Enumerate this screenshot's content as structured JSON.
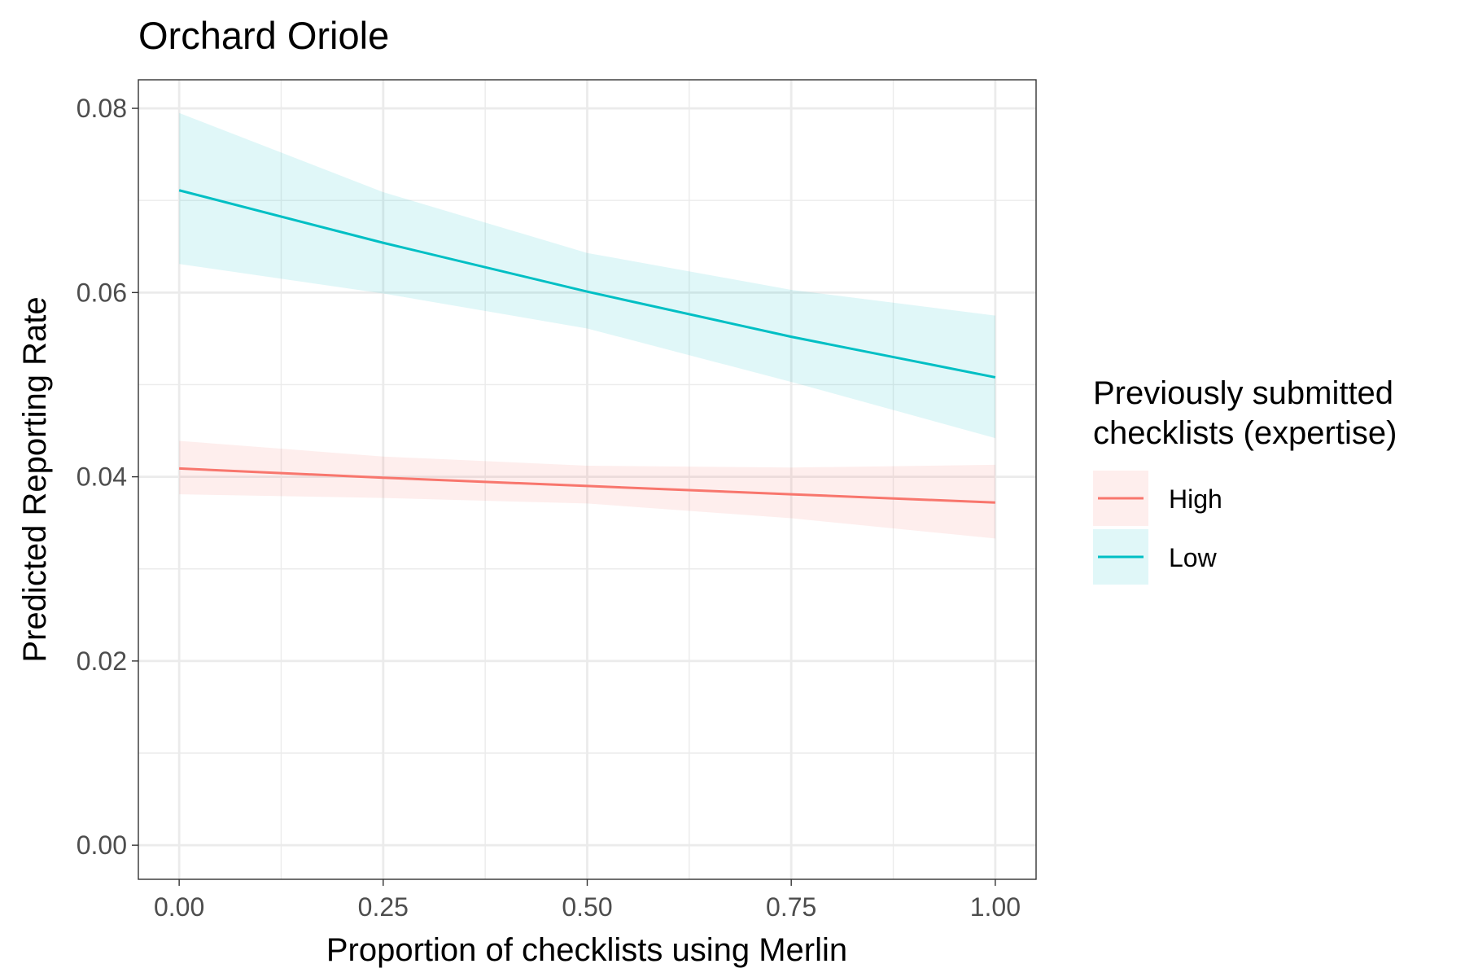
{
  "chart_data": {
    "type": "line",
    "title": "Orchard Oriole",
    "xlabel": "Proportion of checklists using Merlin",
    "ylabel": "Predicted Reporting Rate",
    "xlim": [
      -0.05,
      1.05
    ],
    "ylim": [
      -0.0037,
      0.0831
    ],
    "x_ticks": [
      0,
      0.25,
      0.5,
      0.75,
      1.0
    ],
    "x_tick_labels": [
      "0.00",
      "0.25",
      "0.50",
      "0.75",
      "1.00"
    ],
    "y_ticks": [
      0,
      0.02,
      0.04,
      0.06,
      0.08
    ],
    "y_tick_labels": [
      "0.00",
      "0.02",
      "0.04",
      "0.06",
      "0.08"
    ],
    "grid": true,
    "legend": {
      "title_lines": [
        "Previously submitted",
        "checklists (expertise)"
      ],
      "placement": "right"
    },
    "x": [
      0,
      0.25,
      0.5,
      0.75,
      1.0
    ],
    "series": [
      {
        "name": "High",
        "color": "#F8766D",
        "values": [
          0.0409,
          0.0399,
          0.039,
          0.0381,
          0.0372
        ],
        "lower": [
          0.0381,
          0.0377,
          0.0371,
          0.0355,
          0.0333
        ],
        "upper": [
          0.0439,
          0.0422,
          0.0412,
          0.041,
          0.0413
        ]
      },
      {
        "name": "Low",
        "color": "#00BFC4",
        "values": [
          0.0711,
          0.0654,
          0.0601,
          0.0552,
          0.0508
        ],
        "lower": [
          0.0631,
          0.0599,
          0.0561,
          0.0503,
          0.0442
        ],
        "upper": [
          0.0795,
          0.0709,
          0.0643,
          0.0603,
          0.0575
        ]
      }
    ]
  }
}
